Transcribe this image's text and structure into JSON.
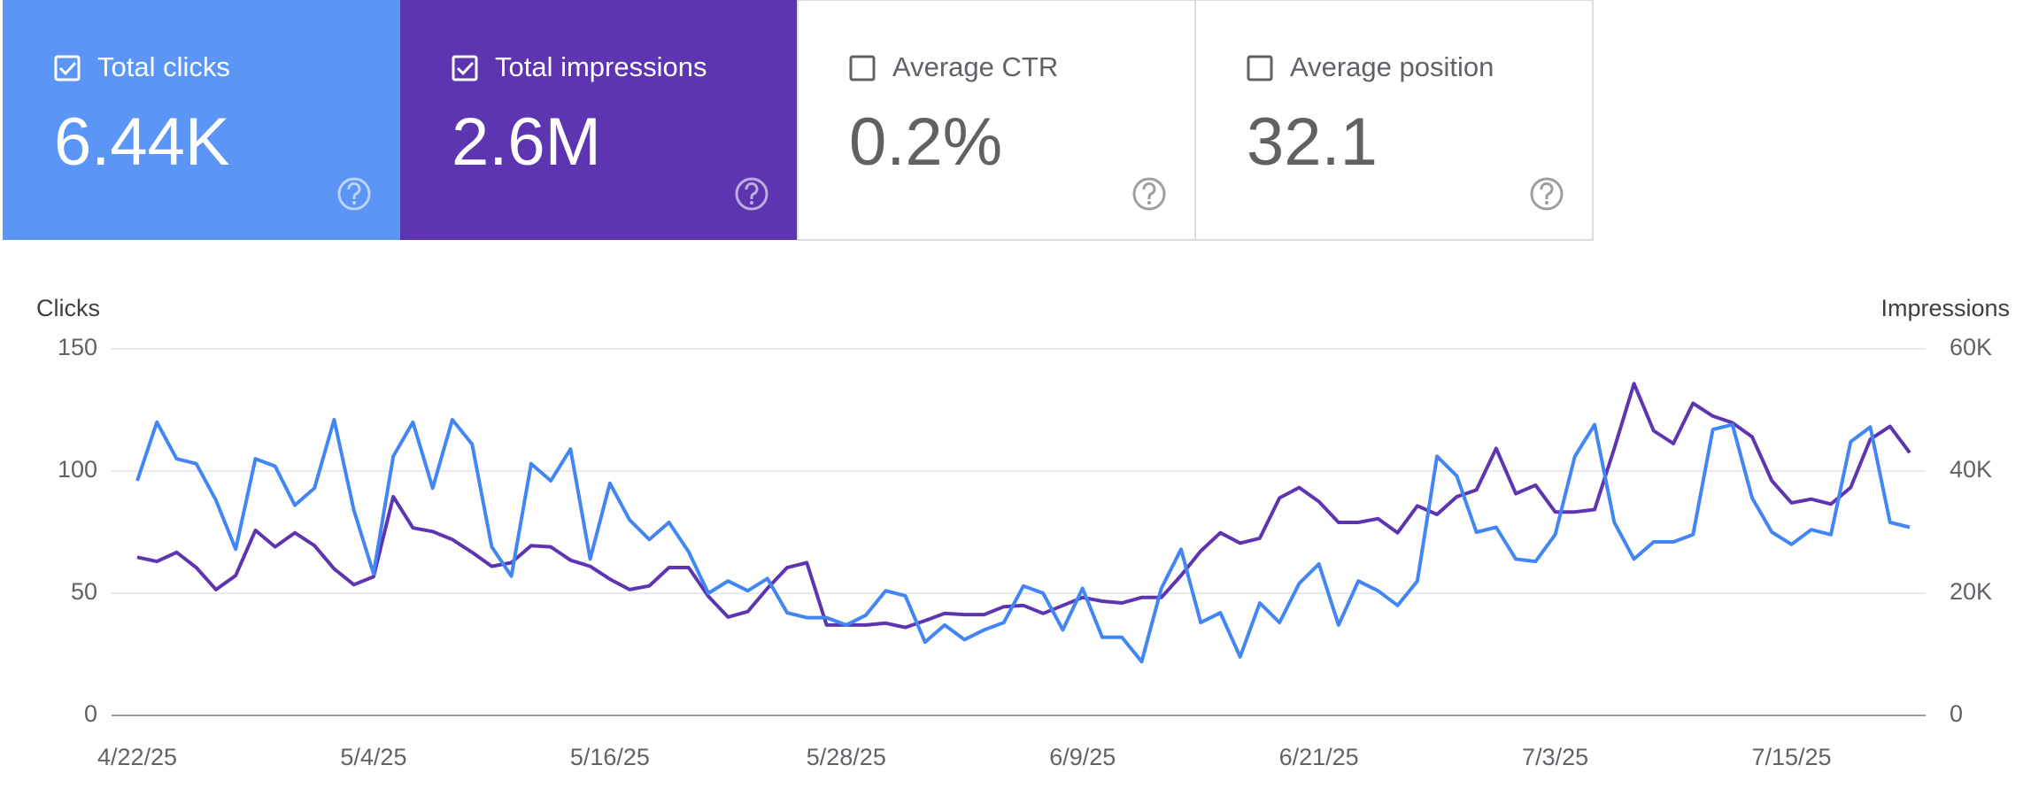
{
  "cards": [
    {
      "label": "Total clicks",
      "value": "6.44K",
      "checked": true
    },
    {
      "label": "Total impressions",
      "value": "2.6M",
      "checked": true
    },
    {
      "label": "Average CTR",
      "value": "0.2%",
      "checked": false
    },
    {
      "label": "Average position",
      "value": "32.1",
      "checked": false
    }
  ],
  "chart_data": {
    "type": "line",
    "ylabel": "Clicks",
    "y2label": "Impressions",
    "categories": [
      "4/22/25",
      null,
      null,
      null,
      null,
      null,
      null,
      null,
      null,
      null,
      null,
      null,
      "5/4/25",
      null,
      null,
      null,
      null,
      null,
      null,
      null,
      null,
      null,
      null,
      null,
      "5/16/25",
      null,
      null,
      null,
      null,
      null,
      null,
      null,
      null,
      null,
      null,
      null,
      "5/28/25",
      null,
      null,
      null,
      null,
      null,
      null,
      null,
      null,
      null,
      null,
      null,
      "6/9/25",
      null,
      null,
      null,
      null,
      null,
      null,
      null,
      null,
      null,
      null,
      null,
      "6/21/25",
      null,
      null,
      null,
      null,
      null,
      null,
      null,
      null,
      null,
      null,
      null,
      "7/3/25",
      null,
      null,
      null,
      null,
      null,
      null,
      null,
      null,
      null,
      null,
      null,
      "7/15/25",
      null,
      null,
      null,
      null,
      null,
      null
    ],
    "ylim": [
      0,
      150
    ],
    "yticks": [
      0,
      50,
      100,
      150
    ],
    "y2lim": [
      0,
      60000
    ],
    "y2ticks": [
      0,
      {
        "value": 20000,
        "label": "20K"
      },
      {
        "value": 40000,
        "label": "40K"
      },
      {
        "value": 60000,
        "label": "60K"
      }
    ],
    "grid": true,
    "series": [
      {
        "name": "Clicks",
        "color": "#4285f4",
        "axis": "y",
        "values": [
          96,
          120,
          105,
          103,
          88,
          68,
          105,
          102,
          86,
          93,
          121,
          84,
          58,
          106,
          120,
          93,
          121,
          111,
          69,
          57,
          103,
          96,
          109,
          64,
          95,
          80,
          72,
          79,
          67,
          50,
          55,
          51,
          56,
          42,
          40,
          40,
          37,
          41,
          51,
          49,
          30,
          37,
          31,
          35,
          38,
          53,
          50,
          35,
          52,
          32,
          32,
          22,
          52,
          68,
          38,
          42,
          24,
          46,
          38,
          54,
          62,
          37,
          55,
          51,
          45,
          55,
          106,
          98,
          75,
          77,
          64,
          63,
          74,
          106,
          119,
          79,
          64,
          71,
          71,
          74,
          117,
          119,
          89,
          75,
          70,
          76,
          74,
          112,
          118,
          79,
          77
        ]
      },
      {
        "name": "Impressions",
        "color": "#5e35b1",
        "axis": "y2",
        "values": [
          25900,
          25200,
          26700,
          24200,
          20600,
          22900,
          30300,
          27600,
          29900,
          27800,
          24000,
          21400,
          22700,
          35800,
          30700,
          30100,
          28800,
          26700,
          24400,
          25000,
          27800,
          27600,
          25400,
          24400,
          22300,
          20600,
          21200,
          24200,
          24200,
          19500,
          16100,
          17000,
          20800,
          24200,
          25000,
          14800,
          14800,
          14800,
          15100,
          14400,
          15500,
          16700,
          16500,
          16500,
          17800,
          18000,
          16700,
          18000,
          19300,
          18700,
          18400,
          19300,
          19300,
          22900,
          26900,
          29900,
          28200,
          29000,
          35600,
          37300,
          35000,
          31600,
          31600,
          32200,
          29900,
          34300,
          32900,
          35800,
          36900,
          43700,
          36300,
          37700,
          33300,
          33300,
          33700,
          43700,
          54300,
          46600,
          44500,
          51100,
          49000,
          47900,
          45600,
          38400,
          34800,
          35400,
          34600,
          37300,
          45200,
          47300,
          43000
        ]
      }
    ]
  }
}
